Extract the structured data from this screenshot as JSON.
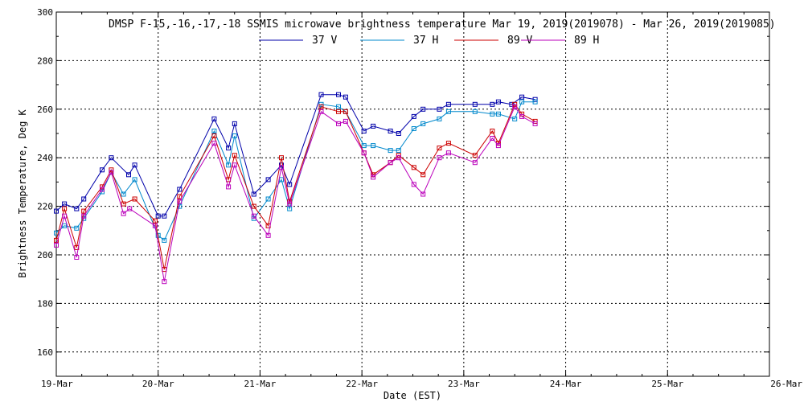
{
  "chart_data": {
    "type": "line",
    "title": "DMSP F-15,-16,-17,-18 SSMIS microwave brightness temperature Mar 19, 2019(2019078) - Mar 26, 2019(2019085)",
    "xlabel": "Date (EST)",
    "ylabel": "Brightness Temperature, Deg K",
    "xlim": [
      0,
      7
    ],
    "ylim": [
      150,
      300
    ],
    "x_ticks": [
      0,
      1,
      2,
      3,
      4,
      5,
      6,
      7
    ],
    "x_tick_labels": [
      "19-Mar",
      "20-Mar",
      "21-Mar",
      "22-Mar",
      "23-Mar",
      "24-Mar",
      "25-Mar",
      "26-Mar"
    ],
    "y_ticks": [
      160,
      180,
      200,
      220,
      240,
      260,
      280,
      300
    ],
    "y_tick_labels": [
      "160",
      "180",
      "200",
      "220",
      "240",
      "260",
      "280",
      "300"
    ],
    "grid": true,
    "legend_position": "top",
    "series": [
      {
        "name": "37 V",
        "color": "#0000aa",
        "marker": "square",
        "x": [
          0.0,
          0.08,
          0.2,
          0.27,
          0.45,
          0.54,
          0.71,
          0.77,
          1.0,
          1.06,
          1.21,
          1.55,
          1.69,
          1.75,
          1.94,
          2.08,
          2.21,
          2.29,
          2.6,
          2.77,
          2.84,
          3.02,
          3.11,
          3.28,
          3.36,
          3.51,
          3.6,
          3.76,
          3.85,
          4.11,
          4.28,
          4.34,
          4.47,
          4.57,
          4.7
        ],
        "y": [
          218,
          221,
          219,
          223,
          235,
          240,
          233,
          237,
          216,
          216,
          227,
          256,
          244,
          254,
          225,
          231,
          237,
          229,
          266,
          266,
          265,
          251,
          253,
          251,
          250,
          257,
          260,
          260,
          262,
          262,
          262,
          263,
          262,
          265,
          264
        ]
      },
      {
        "name": "37 H",
        "color": "#0088cc",
        "marker": "square",
        "x": [
          0.0,
          0.08,
          0.2,
          0.27,
          0.45,
          0.54,
          0.66,
          0.77,
          1.0,
          1.06,
          1.21,
          1.55,
          1.69,
          1.75,
          1.94,
          2.08,
          2.21,
          2.29,
          2.6,
          2.77,
          2.84,
          3.02,
          3.11,
          3.28,
          3.36,
          3.51,
          3.6,
          3.76,
          3.85,
          4.11,
          4.28,
          4.34,
          4.5,
          4.57,
          4.7
        ],
        "y": [
          209,
          212,
          211,
          215,
          226,
          234,
          225,
          231,
          208,
          206,
          220,
          251,
          237,
          249,
          215,
          223,
          231,
          219,
          262,
          261,
          259,
          245,
          245,
          243,
          243,
          252,
          254,
          256,
          259,
          259,
          258,
          258,
          256,
          263,
          263
        ]
      },
      {
        "name": "89 V",
        "color": "#cc0000",
        "marker": "square",
        "x": [
          0.0,
          0.08,
          0.2,
          0.27,
          0.45,
          0.54,
          0.66,
          0.77,
          0.97,
          1.06,
          1.21,
          1.55,
          1.69,
          1.75,
          1.94,
          2.08,
          2.21,
          2.29,
          2.6,
          2.77,
          2.84,
          3.02,
          3.11,
          3.28,
          3.36,
          3.51,
          3.6,
          3.76,
          3.85,
          4.11,
          4.28,
          4.34,
          4.5,
          4.57,
          4.7
        ],
        "y": [
          206,
          219,
          203,
          218,
          228,
          235,
          221,
          223,
          214,
          194,
          224,
          249,
          231,
          241,
          220,
          212,
          240,
          222,
          261,
          259,
          259,
          242,
          233,
          238,
          241,
          236,
          233,
          244,
          246,
          241,
          251,
          246,
          262,
          258,
          255
        ]
      },
      {
        "name": "89 H",
        "color": "#bb00bb",
        "marker": "square",
        "x": [
          0.0,
          0.08,
          0.2,
          0.27,
          0.45,
          0.54,
          0.66,
          0.72,
          0.97,
          1.06,
          1.21,
          1.55,
          1.69,
          1.75,
          1.94,
          2.08,
          2.21,
          2.29,
          2.6,
          2.77,
          2.84,
          3.02,
          3.11,
          3.28,
          3.36,
          3.51,
          3.6,
          3.76,
          3.85,
          4.11,
          4.28,
          4.34,
          4.5,
          4.57,
          4.7
        ],
        "y": [
          204,
          216,
          199,
          216,
          227,
          234,
          217,
          219,
          212,
          189,
          222,
          246,
          228,
          237,
          216,
          208,
          236,
          221,
          259,
          254,
          255,
          242,
          232,
          238,
          240,
          229,
          225,
          240,
          242,
          238,
          248,
          245,
          261,
          257,
          254
        ]
      }
    ]
  }
}
